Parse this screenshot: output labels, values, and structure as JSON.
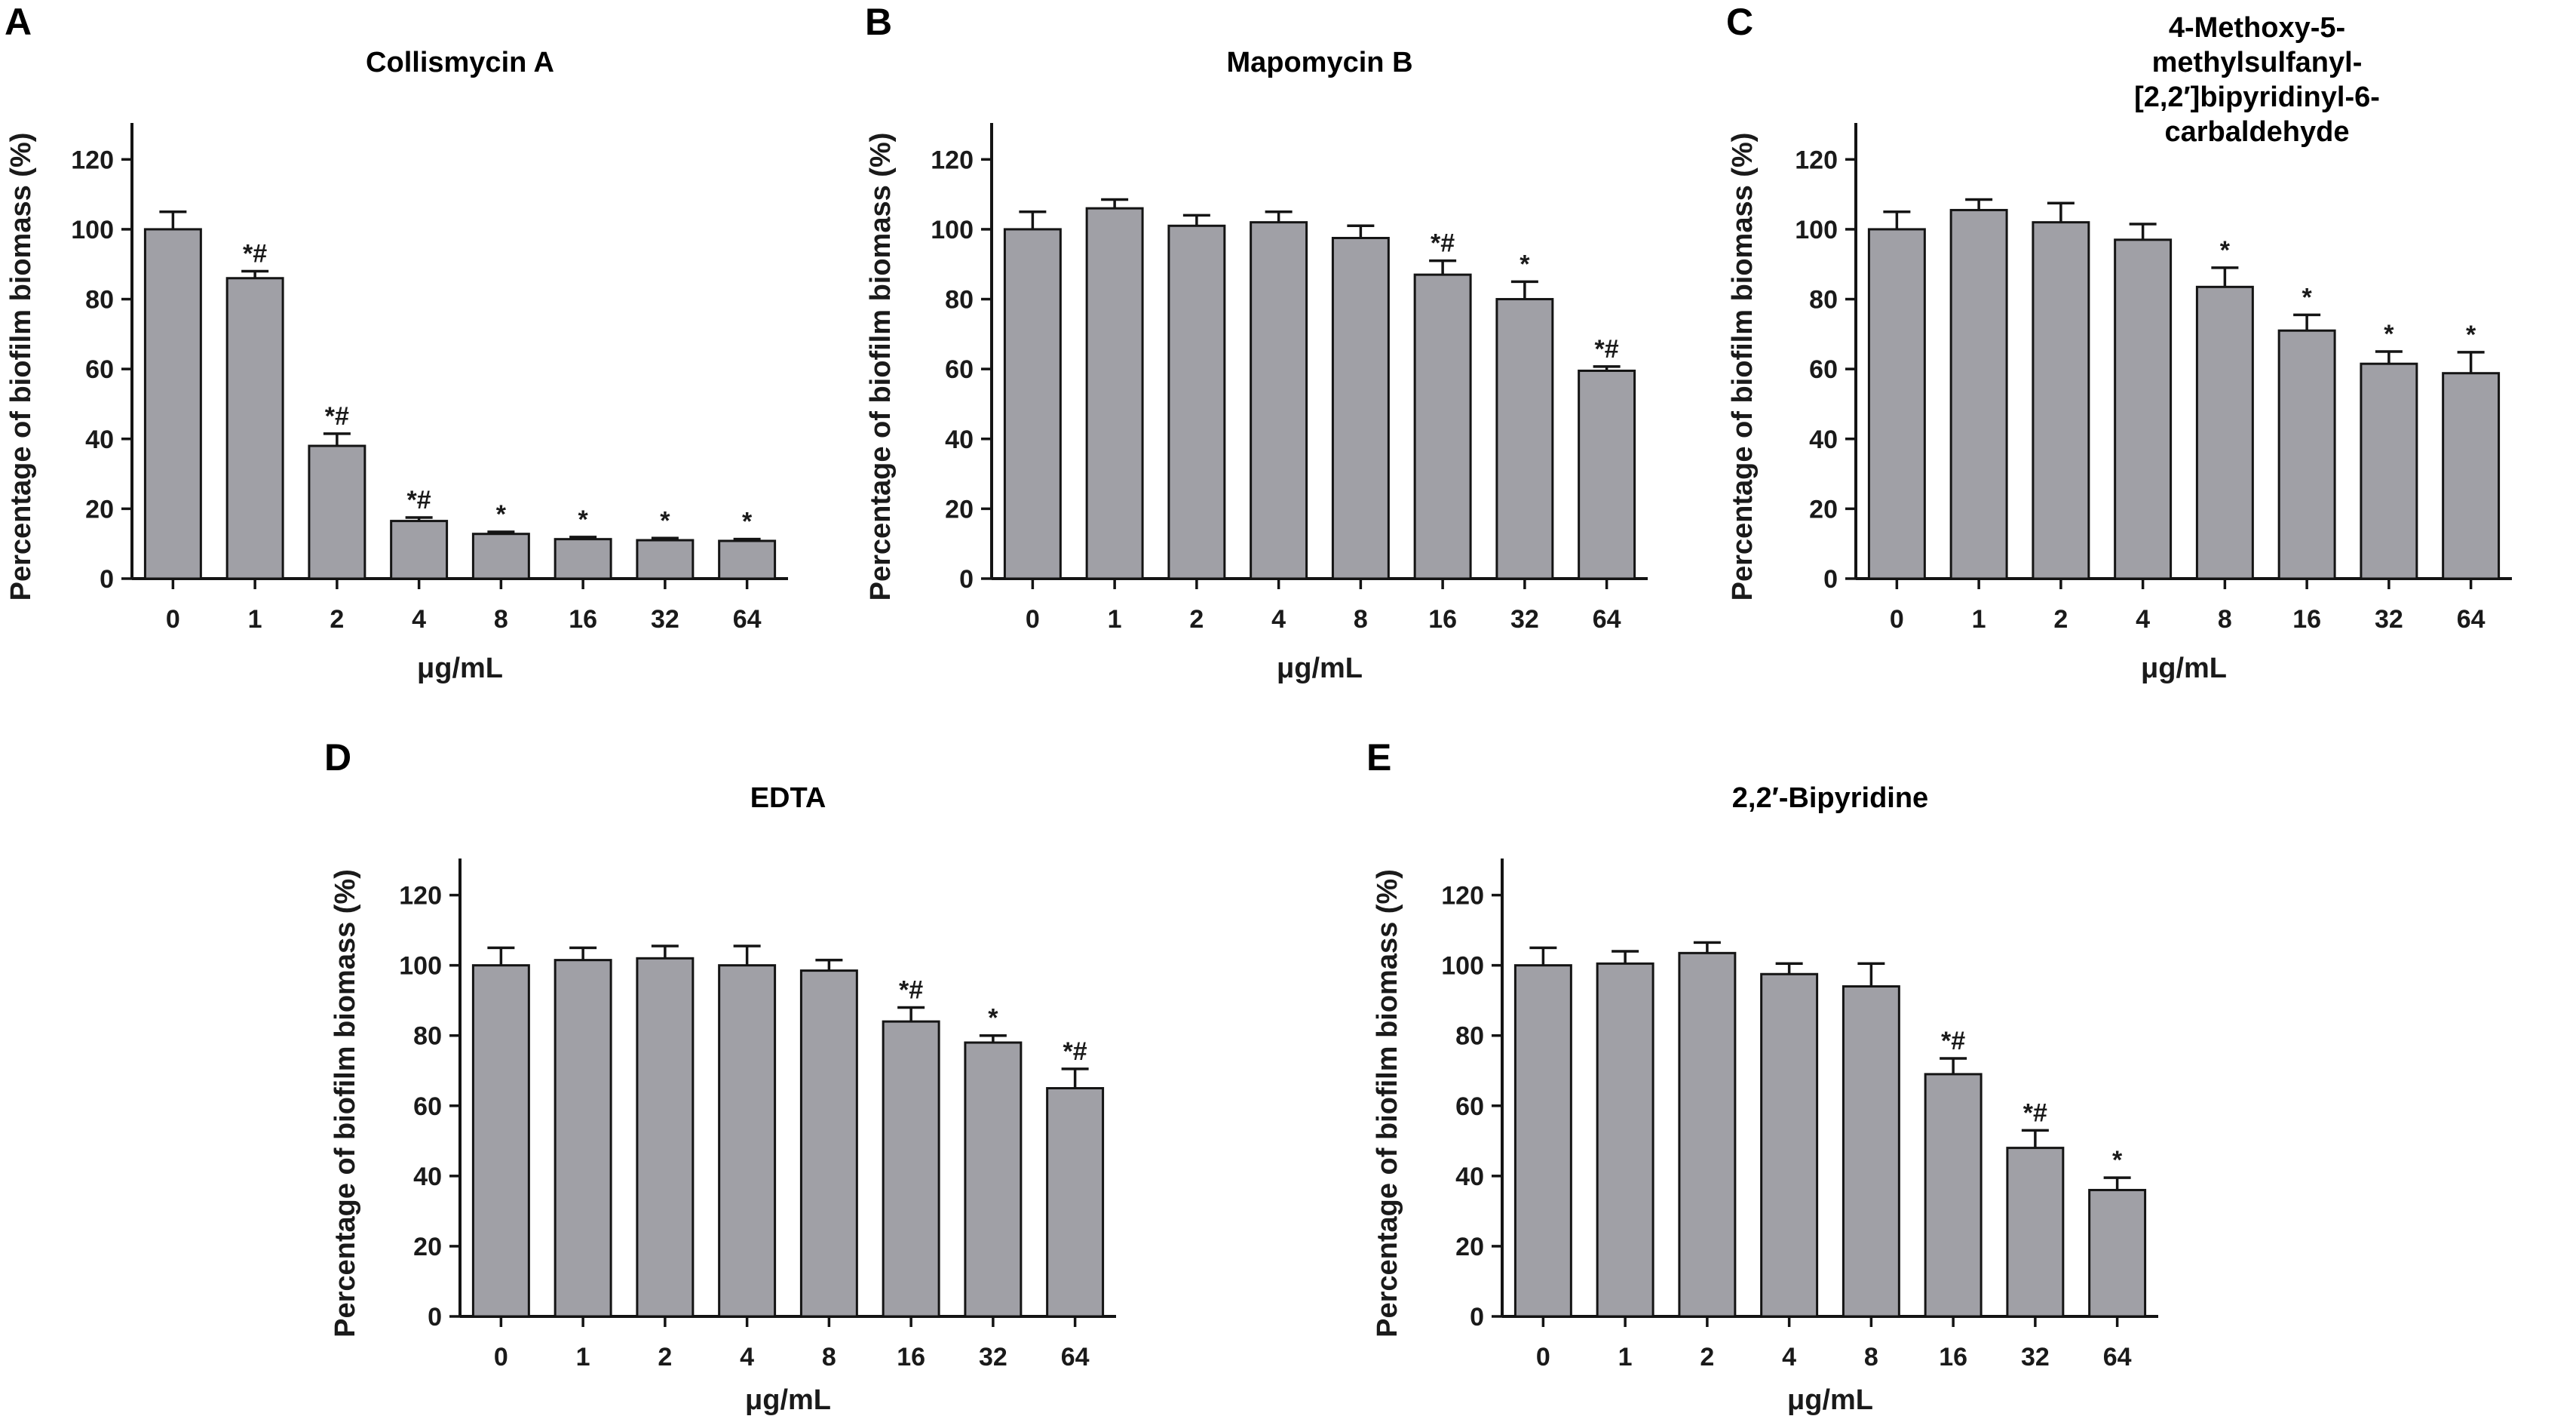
{
  "chart_data": [
    {
      "panel": "A",
      "type": "bar",
      "title": "Collismycin A",
      "xlabel": "μg/mL",
      "ylabel": "Percentage of biofilm biomass (%)",
      "ylim": [
        0,
        130
      ],
      "yticks": [
        0,
        20,
        40,
        60,
        80,
        100,
        120
      ],
      "categories": [
        "0",
        "1",
        "2",
        "4",
        "8",
        "16",
        "32",
        "64"
      ],
      "values": [
        100,
        86,
        38,
        16.5,
        12.8,
        11.3,
        11,
        10.8
      ],
      "errors": [
        5,
        2,
        3.5,
        1,
        0.6,
        0.6,
        0.6,
        0.5
      ],
      "annotations": [
        "",
        "*#",
        "*#",
        "*#",
        "*",
        "*",
        "*",
        "*"
      ]
    },
    {
      "panel": "B",
      "type": "bar",
      "title": "Mapomycin B",
      "xlabel": "μg/mL",
      "ylabel": "Percentage of biofilm biomass (%)",
      "ylim": [
        0,
        130
      ],
      "yticks": [
        0,
        20,
        40,
        60,
        80,
        100,
        120
      ],
      "categories": [
        "0",
        "1",
        "2",
        "4",
        "8",
        "16",
        "32",
        "64"
      ],
      "values": [
        100,
        106,
        101,
        102,
        97.5,
        87,
        80,
        59.5
      ],
      "errors": [
        5,
        2.5,
        3,
        3,
        3.5,
        4,
        5,
        1.2
      ],
      "annotations": [
        "",
        "",
        "",
        "",
        "",
        "*#",
        "*",
        "*#"
      ]
    },
    {
      "panel": "C",
      "type": "bar",
      "title": "4-Methoxy-5-methylsulfanyl-[2,2′]bipyridinyl-6-carbaldehyde",
      "xlabel": "μg/mL",
      "ylabel": "Percentage of biofilm biomass (%)",
      "ylim": [
        0,
        130
      ],
      "yticks": [
        0,
        20,
        40,
        60,
        80,
        100,
        120
      ],
      "categories": [
        "0",
        "1",
        "2",
        "4",
        "8",
        "16",
        "32",
        "64"
      ],
      "values": [
        100,
        105.5,
        102,
        97,
        83.5,
        71,
        61.5,
        58.8
      ],
      "errors": [
        5,
        3,
        5.5,
        4.5,
        5.5,
        4.5,
        3.5,
        6
      ],
      "annotations": [
        "",
        "",
        "",
        "",
        "*",
        "*",
        "*",
        "*"
      ]
    },
    {
      "panel": "D",
      "type": "bar",
      "title": "EDTA",
      "xlabel": "μg/mL",
      "ylabel": "Percentage of biofilm biomass (%)",
      "ylim": [
        0,
        130
      ],
      "yticks": [
        0,
        20,
        40,
        60,
        80,
        100,
        120
      ],
      "categories": [
        "0",
        "1",
        "2",
        "4",
        "8",
        "16",
        "32",
        "64"
      ],
      "values": [
        100,
        101.5,
        102,
        100,
        98.5,
        84,
        78,
        65
      ],
      "errors": [
        5,
        3.5,
        3.5,
        5.5,
        3,
        4,
        2,
        5.5
      ],
      "annotations": [
        "",
        "",
        "",
        "",
        "",
        "*#",
        "*",
        "*#"
      ]
    },
    {
      "panel": "E",
      "type": "bar",
      "title": "2,2′-Bipyridine",
      "xlabel": "μg/mL",
      "ylabel": "Percentage of biofilm biomass (%)",
      "ylim": [
        0,
        130
      ],
      "yticks": [
        0,
        20,
        40,
        60,
        80,
        100,
        120
      ],
      "categories": [
        "0",
        "1",
        "2",
        "4",
        "8",
        "16",
        "32",
        "64"
      ],
      "values": [
        100,
        100.5,
        103.5,
        97.5,
        94,
        69,
        48,
        36
      ],
      "errors": [
        5,
        3.5,
        3,
        3,
        6.5,
        4.5,
        5,
        3.5
      ],
      "annotations": [
        "",
        "",
        "",
        "",
        "",
        "*#",
        "*#",
        "*"
      ]
    }
  ],
  "bar_color": "#a0a0a6",
  "axis_color": "#141414"
}
